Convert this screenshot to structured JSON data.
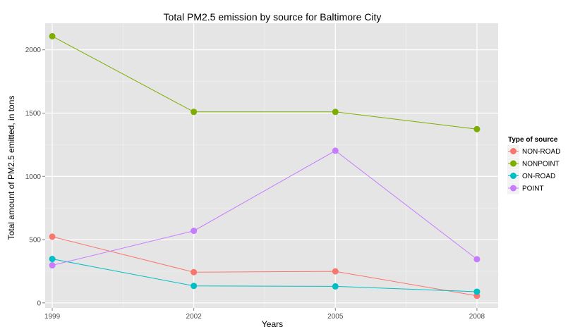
{
  "chart_data": {
    "type": "line",
    "title": "Total PM2.5 emission by source for Baltimore City",
    "xlabel": "Years",
    "ylabel": "Total amount of PM2.5 emitted, in tons",
    "x": [
      1999,
      2002,
      2005,
      2008
    ],
    "x_ticks": [
      "1999",
      "2002",
      "2005",
      "2008"
    ],
    "y_ticks": [
      "0",
      "500",
      "1000",
      "1500",
      "2000"
    ],
    "ylim": [
      -40,
      2210
    ],
    "xlim": [
      1998.85,
      2008.45
    ],
    "grid": true,
    "legend_title": "Type of source",
    "legend_position": "right",
    "series": [
      {
        "name": "NON-ROAD",
        "color": "#F8766D",
        "values": [
          522.94,
          242.66,
          248.93,
          55.82
        ]
      },
      {
        "name": "NONPOINT",
        "color": "#7CAE00",
        "values": [
          2107.63,
          1509.5,
          1509.5,
          1373.21
        ]
      },
      {
        "name": "ON-ROAD",
        "color": "#00BFC4",
        "values": [
          346.82,
          134.31,
          130.43,
          88.28
        ]
      },
      {
        "name": "POINT",
        "color": "#C77CFF",
        "values": [
          296.8,
          569.26,
          1202.49,
          344.98
        ]
      }
    ]
  }
}
